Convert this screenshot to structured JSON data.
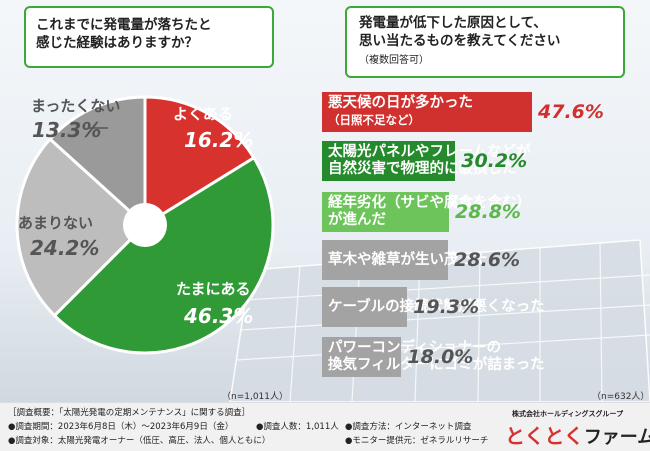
{
  "pie_question": {
    "line1": "これまでに発電量が落ちたと",
    "line2": "感じた経験はありますか？"
  },
  "bar_question": {
    "line1": "発電量が低下した原因として、",
    "line2": "思い当たるものを教えてください",
    "note": "（複数回答可）"
  },
  "chart_data": [
    {
      "type": "pie",
      "title": "これまでに発電量が落ちたと感じた経験はありますか？",
      "labels": [
        "よくある",
        "たまにある",
        "あまりない",
        "まったくない"
      ],
      "values": [
        16.2,
        46.3,
        24.2,
        13.3
      ],
      "value_labels": [
        "16.2%",
        "46.3%",
        "24.2%",
        "13.3%"
      ],
      "colors": [
        "#d8322f",
        "#2f9a36",
        "#bdbdbd",
        "#9a9a9a"
      ],
      "n_label": "（n=1,011人）"
    },
    {
      "type": "bar",
      "orientation": "horizontal",
      "title": "発電量が低下した原因として、思い当たるものを教えてください（複数回答可）",
      "categories": [
        "悪天候の日が多かった（日照不足など）",
        "太陽光パネルやフレームなどが自然災害で物理的に破損した",
        "経年劣化（サビや腐食を含む）が進んだ",
        "草木や雑草が生い茂った",
        "ケーブルの接続状態が悪くなった",
        "パワーコンディショナーの換気フィルターにゴミが詰まった"
      ],
      "values": [
        47.6,
        30.2,
        28.8,
        28.6,
        19.3,
        18.0
      ],
      "value_labels": [
        "47.6%",
        "30.2%",
        "28.8%",
        "28.6%",
        "19.3%",
        "18.0%"
      ],
      "bar_text": [
        {
          "line1": "悪天候の日が多かった",
          "line2": "（日照不足など）"
        },
        {
          "line1": "太陽光パネルやフレームなどが",
          "line2": "自然災害で物理的に破損した"
        },
        {
          "line1": "経年劣化（サビや腐食を含む）",
          "line2": "が進んだ"
        },
        {
          "line1": "草木や雑草が生い茂った",
          "line2": ""
        },
        {
          "line1": "ケーブルの接続状態が悪くなった",
          "line2": ""
        },
        {
          "line1": "パワーコンディショナーの",
          "line2": "換気フィルターにゴミが詰まった"
        }
      ],
      "colors": [
        "#d0302e",
        "#248a2c",
        "#6cc45a",
        "#a3a3a3",
        "#a3a3a3",
        "#a3a3a3"
      ],
      "pct_colors": [
        "#d0302e",
        "#248a2c",
        "#5cb84b",
        "#555555",
        "#555555",
        "#555555"
      ],
      "n_label": "（n=632人）"
    }
  ],
  "footer": {
    "line1": "［調査概要：「太陽光発電の定期メンテナンス」に関する調査］",
    "line2a": "●調査期間：2023年6月8日（木）～2023年6月9日（金）",
    "line2b": "●調査人数：1,011人",
    "line2c": "●調査方法：インターネット調査",
    "line3a": "●調査対象：太陽光発電オーナー（低圧、高圧、法人、個人ともに）",
    "line3b": "●モニター提供元：ゼネラルリサーチ"
  },
  "logo": {
    "company": "株式会社ホールディングスグループ",
    "part1": "とくとく",
    "part2": "ファーム"
  }
}
